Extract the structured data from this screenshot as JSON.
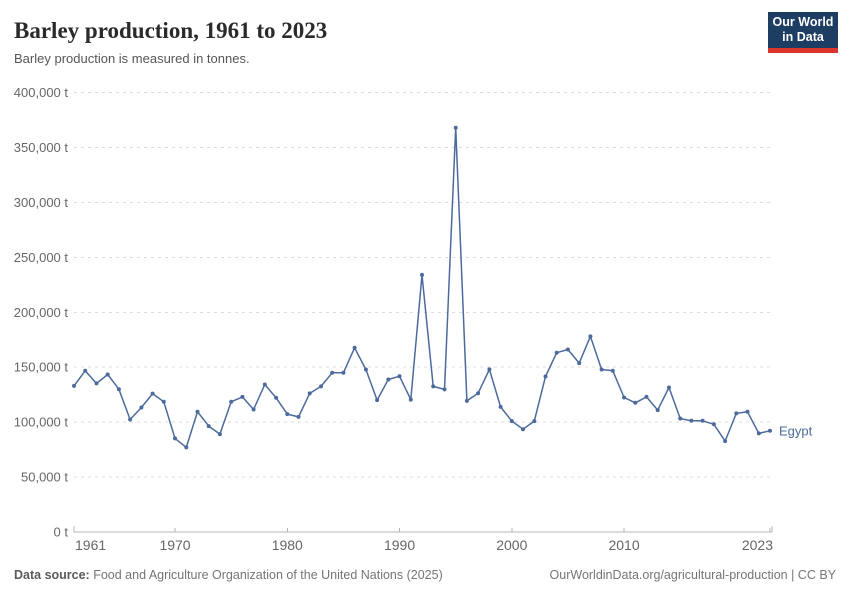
{
  "header": {
    "title": "Barley production, 1961 to 2023",
    "subtitle": "Barley production is measured in tonnes.",
    "logo": {
      "line1": "Our World",
      "line2": "in Data",
      "bg_color": "#1d3d63",
      "accent_color": "#dc352c"
    }
  },
  "chart_data": {
    "type": "line",
    "title": "Barley production, 1961 to 2023",
    "ylabel": "",
    "xlabel": "",
    "unit": "tonnes",
    "series_label": "Egypt",
    "line_color": "#4C6A9C",
    "grid": "horizontal-dashed",
    "legend_position": "end-of-line",
    "xlim": [
      1961,
      2023
    ],
    "ylim": [
      0,
      400000
    ],
    "x": [
      1961,
      1962,
      1963,
      1964,
      1965,
      1966,
      1967,
      1968,
      1969,
      1970,
      1971,
      1972,
      1973,
      1974,
      1975,
      1976,
      1977,
      1978,
      1979,
      1980,
      1981,
      1982,
      1983,
      1984,
      1985,
      1986,
      1987,
      1988,
      1989,
      1990,
      1991,
      1992,
      1993,
      1994,
      1995,
      1996,
      1997,
      1998,
      1999,
      2000,
      2001,
      2002,
      2003,
      2004,
      2005,
      2006,
      2007,
      2008,
      2009,
      2010,
      2011,
      2012,
      2013,
      2014,
      2015,
      2016,
      2017,
      2018,
      2019,
      2020,
      2021,
      2022,
      2023
    ],
    "values": [
      133000,
      146700,
      135200,
      143300,
      130000,
      102400,
      113300,
      126000,
      118500,
      85200,
      77000,
      109500,
      96400,
      89100,
      118500,
      123000,
      111500,
      134200,
      122100,
      107300,
      104800,
      126100,
      132500,
      144900,
      144900,
      167600,
      147900,
      120000,
      138800,
      141800,
      120500,
      234000,
      132500,
      129800,
      368000,
      119300,
      126300,
      148000,
      113900,
      100900,
      93600,
      100900,
      141500,
      163200,
      166100,
      153700,
      178000,
      147900,
      146700,
      122400,
      117600,
      123000,
      110900,
      131500,
      103300,
      101200,
      101200,
      98000,
      82700,
      107900,
      109400,
      89700,
      92100
    ],
    "yticks": [
      {
        "value": 0,
        "label": "0 t"
      },
      {
        "value": 50000,
        "label": "50,000 t"
      },
      {
        "value": 100000,
        "label": "100,000 t"
      },
      {
        "value": 150000,
        "label": "150,000 t"
      },
      {
        "value": 200000,
        "label": "200,000 t"
      },
      {
        "value": 250000,
        "label": "250,000 t"
      },
      {
        "value": 300000,
        "label": "300,000 t"
      },
      {
        "value": 350000,
        "label": "350,000 t"
      },
      {
        "value": 400000,
        "label": "400,000 t"
      }
    ],
    "xticks": [
      {
        "year": 1961,
        "label": "1961"
      },
      {
        "year": 1970,
        "label": "1970"
      },
      {
        "year": 1980,
        "label": "1980"
      },
      {
        "year": 1990,
        "label": "1990"
      },
      {
        "year": 2000,
        "label": "2000"
      },
      {
        "year": 2010,
        "label": "2010"
      },
      {
        "year": 2023,
        "label": "2023"
      }
    ]
  },
  "footer": {
    "source_label": "Data source:",
    "source_text": "Food and Agriculture Organization of the United Nations (2025)",
    "credit": "OurWorldinData.org/agricultural-production | CC BY"
  }
}
